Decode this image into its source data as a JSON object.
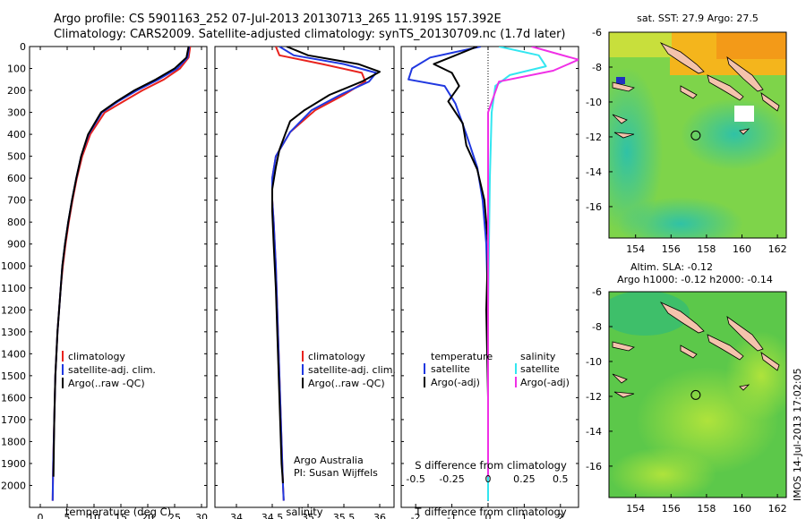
{
  "header": {
    "line1": "Argo profile: CS 5901163_252 07-Jul-2013 20130713_265 11.919S 157.392E",
    "line2": "Climatology: CARS2009. Satellite-adjusted climatology: synTS_20130709.nc (1.7d later)"
  },
  "colors": {
    "climatology": "#e8231e",
    "satellite": "#2038e0",
    "argo": "#000000",
    "sat_salinity": "#33e6f0",
    "argo_salinity": "#f030e6"
  },
  "chart_data": [
    {
      "id": "temperature",
      "type": "line",
      "xlabel": "temperature (deg C)",
      "ylabel": "",
      "xlim": [
        -2,
        31
      ],
      "ylim": [
        2100,
        0
      ],
      "xticks": [
        0,
        5,
        10,
        15,
        20,
        25,
        30
      ],
      "yticks": [
        0,
        100,
        200,
        300,
        400,
        500,
        600,
        700,
        800,
        900,
        1000,
        1100,
        1200,
        1300,
        1400,
        1500,
        1600,
        1700,
        1800,
        1900,
        2000
      ],
      "legend": [
        "climatology",
        "satellite-adj. clim.",
        "Argo(..raw -QC)"
      ],
      "series": [
        {
          "name": "climatology",
          "color": "#e8231e",
          "x": [
            27.9,
            27.6,
            26.0,
            23.0,
            19.0,
            15.5,
            12.0,
            9.3,
            7.8,
            6.8,
            6.0,
            5.3,
            4.7,
            4.2,
            3.8,
            3.5,
            3.2,
            3.0,
            2.8,
            2.6,
            2.4,
            2.3
          ],
          "y": [
            0,
            50,
            100,
            150,
            200,
            250,
            300,
            400,
            500,
            600,
            700,
            800,
            900,
            1000,
            1100,
            1200,
            1300,
            1400,
            1500,
            1700,
            1900,
            2070
          ]
        },
        {
          "name": "satellite-adj. clim.",
          "color": "#2038e0",
          "x": [
            27.7,
            27.4,
            25.5,
            22.0,
            18.0,
            14.5,
            11.5,
            9.0,
            7.6,
            6.7,
            5.9,
            5.2,
            4.6,
            4.1,
            3.8,
            3.5,
            3.2,
            3.0,
            2.8,
            2.6,
            2.4,
            2.3
          ],
          "y": [
            0,
            50,
            100,
            150,
            200,
            250,
            300,
            400,
            500,
            600,
            700,
            800,
            900,
            1000,
            1100,
            1200,
            1300,
            1400,
            1500,
            1700,
            1900,
            2070
          ]
        },
        {
          "name": "Argo(..raw -QC)",
          "color": "#000000",
          "x": [
            27.6,
            27.2,
            25.0,
            21.5,
            17.5,
            14.2,
            11.3,
            8.9,
            7.6,
            6.7,
            5.9,
            5.2,
            4.6,
            4.1,
            3.8,
            3.5,
            3.2,
            3.0,
            2.8,
            2.6,
            2.45
          ],
          "y": [
            0,
            50,
            100,
            150,
            200,
            250,
            300,
            400,
            500,
            600,
            700,
            800,
            900,
            1000,
            1100,
            1200,
            1300,
            1400,
            1500,
            1700,
            1960
          ]
        }
      ]
    },
    {
      "id": "salinity",
      "type": "line",
      "xlabel": "salinity",
      "xlim": [
        33.7,
        36.2
      ],
      "ylim": [
        2100,
        0
      ],
      "xticks": [
        34,
        34.5,
        35,
        35.5,
        36
      ],
      "legend": [
        "climatology",
        "satellite-adj. clim.",
        "Argo(..raw -QC)"
      ],
      "annotation": [
        "Argo Australia",
        "PI: Susan Wijffels"
      ],
      "series": [
        {
          "name": "climatology",
          "color": "#e8231e",
          "x": [
            34.55,
            34.6,
            35.2,
            35.75,
            35.8,
            35.5,
            35.1,
            34.75,
            34.55,
            34.5,
            34.5,
            34.52,
            34.55,
            34.57,
            34.59,
            34.61,
            34.63,
            34.65,
            34.66
          ],
          "y": [
            0,
            40,
            80,
            120,
            160,
            220,
            290,
            390,
            500,
            600,
            700,
            800,
            1000,
            1200,
            1400,
            1600,
            1800,
            2000,
            2070
          ]
        },
        {
          "name": "satellite-adj. clim.",
          "color": "#2038e0",
          "x": [
            34.6,
            34.8,
            35.5,
            35.95,
            35.85,
            35.45,
            35.05,
            34.75,
            34.55,
            34.5,
            34.5,
            34.52,
            34.55,
            34.57,
            34.59,
            34.61,
            34.63,
            34.65,
            34.66
          ],
          "y": [
            0,
            40,
            80,
            120,
            160,
            220,
            290,
            390,
            500,
            600,
            700,
            800,
            1000,
            1200,
            1400,
            1600,
            1800,
            2000,
            2070
          ]
        },
        {
          "name": "Argo(..raw -QC)",
          "color": "#000000",
          "x": [
            34.7,
            35.0,
            35.7,
            36.0,
            35.75,
            35.3,
            34.95,
            34.75,
            34.68,
            34.6,
            34.55,
            34.5,
            34.5,
            34.52,
            34.55,
            34.58,
            34.61,
            34.63,
            34.65
          ],
          "y": [
            0,
            40,
            80,
            115,
            160,
            220,
            290,
            340,
            400,
            470,
            550,
            650,
            750,
            900,
            1100,
            1400,
            1700,
            1900,
            1990
          ]
        }
      ]
    },
    {
      "id": "difference",
      "type": "line",
      "xlabel": "T difference from climatology",
      "top_label": "S difference from climatology",
      "xlim": [
        -2.4,
        2.5
      ],
      "ylim": [
        2100,
        0
      ],
      "xticks": [
        -2,
        -1,
        0,
        1,
        2
      ],
      "top_ticks": [
        "-0.5",
        "-0.25",
        "0",
        "0.25",
        "0.5"
      ],
      "top_ticks_at_T": [
        -2,
        -1,
        0,
        1,
        2
      ],
      "legend_titles": [
        "temperature",
        "salinity"
      ],
      "legend": [
        "satellite",
        "Argo(-adj)",
        "satellite",
        "Argo(-adj)"
      ],
      "series": [
        {
          "name": "T satellite",
          "color": "#2038e0",
          "x": [
            -0.2,
            -1.6,
            -2.1,
            -2.2,
            -1.2,
            -0.9,
            -0.6,
            -0.3,
            -0.15,
            -0.05,
            0,
            0,
            0
          ],
          "y": [
            0,
            50,
            100,
            150,
            180,
            260,
            400,
            550,
            700,
            900,
            1200,
            1600,
            2070
          ]
        },
        {
          "name": "T Argo(-adj)",
          "color": "#000000",
          "x": [
            -0.3,
            -1.5,
            -1.0,
            -0.8,
            -1.1,
            -0.7,
            -0.6,
            -0.3,
            -0.1,
            0,
            -0.05,
            0,
            0
          ],
          "y": [
            0,
            80,
            120,
            180,
            250,
            350,
            450,
            560,
            700,
            900,
            1200,
            1600,
            1960
          ]
        },
        {
          "name": "S satellite",
          "color": "#33e6f0",
          "x": [
            0.3,
            1.4,
            1.6,
            0.6,
            0.2,
            0.1,
            0.05,
            0,
            0
          ],
          "y": [
            0,
            40,
            90,
            130,
            180,
            300,
            600,
            1200,
            2070
          ]
        },
        {
          "name": "S Argo(-adj)",
          "color": "#f030e6",
          "x": [
            1.2,
            2.5,
            1.8,
            0.3,
            0.0,
            0.0,
            0.0
          ],
          "y": [
            0,
            60,
            110,
            160,
            300,
            800,
            1960
          ]
        }
      ]
    },
    {
      "id": "sst_map",
      "type": "heatmap",
      "title": "sat. SST: 27.9 Argo: 27.5",
      "xlim": [
        152.5,
        162.5
      ],
      "ylim": [
        -17.8,
        -6
      ],
      "xticks": [
        154,
        156,
        158,
        160,
        162
      ],
      "yticks": [
        -6,
        -8,
        -10,
        -12,
        -14,
        -16
      ],
      "marker": {
        "lon": 157.392,
        "lat": -11.919
      }
    },
    {
      "id": "sla_map",
      "type": "heatmap",
      "title": "Altim. SLA: -0.12",
      "subtitle": "Argo h1000: -0.12 h2000: -0.14",
      "xlim": [
        152.5,
        162.5
      ],
      "ylim": [
        -17.8,
        -6
      ],
      "xticks": [
        154,
        156,
        158,
        160,
        162
      ],
      "yticks": [
        -6,
        -8,
        -10,
        -12,
        -14,
        -16
      ],
      "marker": {
        "lon": 157.392,
        "lat": -11.919
      }
    }
  ],
  "sidebar_stamp": "IMOS 14-Jul-2013 17:02:05"
}
